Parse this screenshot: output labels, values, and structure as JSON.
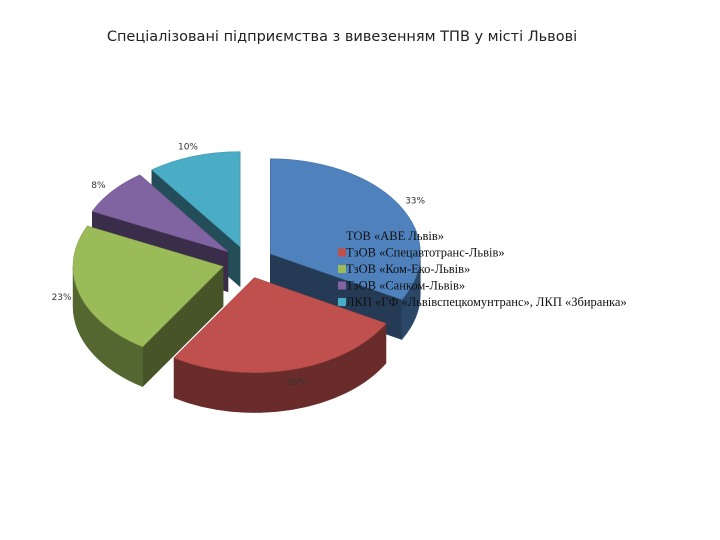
{
  "chart_data": {
    "type": "pie",
    "title": "Спеціалізовані підприємства з вивезенням ТПВ у місті Львові",
    "labels": [
      "ТОВ «АВЕ Львів»",
      "ТзОВ «Спецавтотранс-Львів»",
      "ТзОВ «Ком-Еко-Львів»",
      "ТзОВ «Санком-Львів»",
      "ЛКП «ГФ «Львівспецкомунтранс», ЛКП «Збиранка»"
    ],
    "values": [
      33,
      26,
      23,
      8,
      10
    ],
    "value_labels": [
      "33%",
      "26%",
      "23%",
      "8%",
      "10%"
    ],
    "colors": [
      "#4F81BD",
      "#C0504D",
      "#9BBB59",
      "#8064A2",
      "#4BACC6"
    ],
    "legend_position": "right",
    "style": "3d-exploded"
  }
}
